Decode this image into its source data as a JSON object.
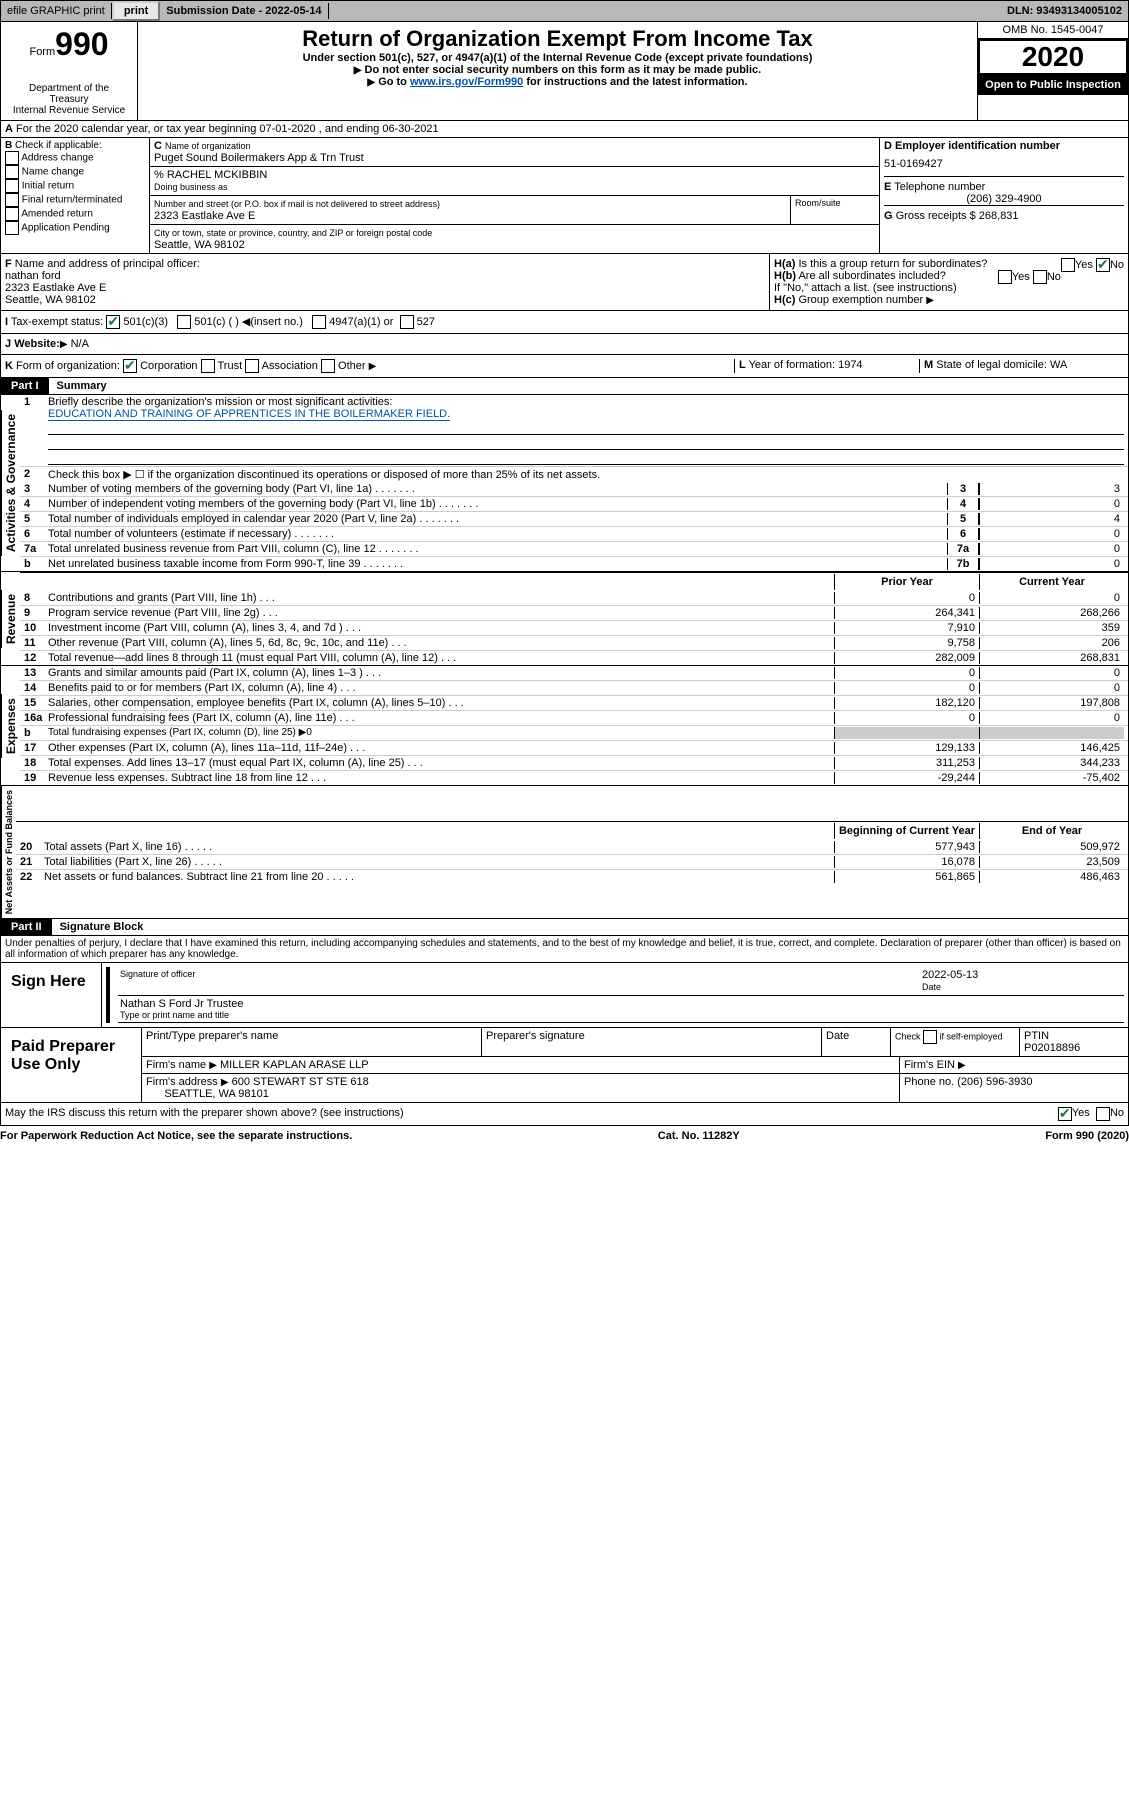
{
  "topbar": {
    "efile": "efile GRAPHIC print",
    "submission": "Submission Date - 2022-05-14",
    "dln": "DLN: 93493134005102"
  },
  "header": {
    "form_label": "Form",
    "form_num": "990",
    "dept": "Department of the Treasury\nInternal Revenue Service",
    "title": "Return of Organization Exempt From Income Tax",
    "sub1": "Under section 501(c), 527, or 4947(a)(1) of the Internal Revenue Code (except private foundations)",
    "sub2": "Do not enter social security numbers on this form as it may be made public.",
    "sub3_pre": "Go to ",
    "sub3_link": "www.irs.gov/Form990",
    "sub3_post": " for instructions and the latest information.",
    "omb": "OMB No. 1545-0047",
    "year": "2020",
    "open": "Open to Public Inspection"
  },
  "section_a": "For the 2020 calendar year, or tax year beginning 07-01-2020    , and ending 06-30-2021",
  "col_b": {
    "hdr": "Check if applicable:",
    "items": [
      "Address change",
      "Name change",
      "Initial return",
      "Final return/terminated",
      "Amended return",
      "Application Pending"
    ]
  },
  "org": {
    "c_label": "Name of organization",
    "name": "Puget Sound Boilermakers App & Trn Trust",
    "care_of": "% RACHEL MCKIBBIN",
    "dba_label": "Doing business as",
    "addr_label": "Number and street (or P.O. box if mail is not delivered to street address)",
    "room_label": "Room/suite",
    "addr": "2323 Eastlake Ave E",
    "city_label": "City or town, state or province, country, and ZIP or foreign postal code",
    "city": "Seattle, WA  98102"
  },
  "col_d": {
    "ein_label": "Employer identification number",
    "ein": "51-0169427",
    "phone_label": "Telephone number",
    "phone": "(206) 329-4900",
    "gross_label": "Gross receipts $",
    "gross": "268,831"
  },
  "f": {
    "label": "Name and address of principal officer:",
    "name": "nathan ford",
    "addr1": "2323 Eastlake Ave E",
    "addr2": "Seattle, WA  98102"
  },
  "h": {
    "a_label": "Is this a group return for subordinates?",
    "a_no": true,
    "b_label": "Are all subordinates included?",
    "b_note": "If \"No,\" attach a list. (see instructions)",
    "c_label": "Group exemption number"
  },
  "i": {
    "label": "Tax-exempt status:",
    "opt1": "501(c)(3)",
    "opt2": "501(c) (  )",
    "opt2b": "(insert no.)",
    "opt3": "4947(a)(1) or",
    "opt4": "527"
  },
  "j": {
    "label": "Website:",
    "val": "N/A"
  },
  "k": {
    "label": "Form of organization:",
    "opts": [
      "Corporation",
      "Trust",
      "Association",
      "Other"
    ]
  },
  "l": {
    "label": "Year of formation:",
    "val": "1974"
  },
  "m": {
    "label": "State of legal domicile:",
    "val": "WA"
  },
  "part1": {
    "hdr": "Part I",
    "title": "Summary"
  },
  "mission": {
    "label": "Briefly describe the organization's mission or most significant activities:",
    "text": "EDUCATION AND TRAINING OF APPRENTICES IN THE BOILERMAKER FIELD."
  },
  "line2": "Check this box ▶ ☐  if the organization discontinued its operations or disposed of more than 25% of its net assets.",
  "gov_lines": [
    {
      "n": "3",
      "t": "Number of voting members of the governing body (Part VI, line 1a)",
      "box": "3",
      "v": "3"
    },
    {
      "n": "4",
      "t": "Number of independent voting members of the governing body (Part VI, line 1b)",
      "box": "4",
      "v": "0"
    },
    {
      "n": "5",
      "t": "Total number of individuals employed in calendar year 2020 (Part V, line 2a)",
      "box": "5",
      "v": "4"
    },
    {
      "n": "6",
      "t": "Total number of volunteers (estimate if necessary)",
      "box": "6",
      "v": "0"
    },
    {
      "n": "7a",
      "t": "Total unrelated business revenue from Part VIII, column (C), line 12",
      "box": "7a",
      "v": "0"
    },
    {
      "n": "b",
      "t": "Net unrelated business taxable income from Form 990-T, line 39",
      "box": "7b",
      "v": "0"
    }
  ],
  "rev_hdr": {
    "prior": "Prior Year",
    "current": "Current Year"
  },
  "rev_lines": [
    {
      "n": "8",
      "t": "Contributions and grants (Part VIII, line 1h)",
      "p": "0",
      "c": "0"
    },
    {
      "n": "9",
      "t": "Program service revenue (Part VIII, line 2g)",
      "p": "264,341",
      "c": "268,266"
    },
    {
      "n": "10",
      "t": "Investment income (Part VIII, column (A), lines 3, 4, and 7d )",
      "p": "7,910",
      "c": "359"
    },
    {
      "n": "11",
      "t": "Other revenue (Part VIII, column (A), lines 5, 6d, 8c, 9c, 10c, and 11e)",
      "p": "9,758",
      "c": "206"
    },
    {
      "n": "12",
      "t": "Total revenue—add lines 8 through 11 (must equal Part VIII, column (A), line 12)",
      "p": "282,009",
      "c": "268,831"
    }
  ],
  "exp_lines": [
    {
      "n": "13",
      "t": "Grants and similar amounts paid (Part IX, column (A), lines 1–3 )",
      "p": "0",
      "c": "0"
    },
    {
      "n": "14",
      "t": "Benefits paid to or for members (Part IX, column (A), line 4)",
      "p": "0",
      "c": "0"
    },
    {
      "n": "15",
      "t": "Salaries, other compensation, employee benefits (Part IX, column (A), lines 5–10)",
      "p": "182,120",
      "c": "197,808"
    },
    {
      "n": "16a",
      "t": "Professional fundraising fees (Part IX, column (A), line 11e)",
      "p": "0",
      "c": "0"
    },
    {
      "n": "b",
      "t": "Total fundraising expenses (Part IX, column (D), line 25) ▶0",
      "shade": true
    },
    {
      "n": "17",
      "t": "Other expenses (Part IX, column (A), lines 11a–11d, 11f–24e)",
      "p": "129,133",
      "c": "146,425"
    },
    {
      "n": "18",
      "t": "Total expenses. Add lines 13–17 (must equal Part IX, column (A), line 25)",
      "p": "311,253",
      "c": "344,233"
    },
    {
      "n": "19",
      "t": "Revenue less expenses. Subtract line 18 from line 12",
      "p": "-29,244",
      "c": "-75,402"
    }
  ],
  "net_hdr": {
    "begin": "Beginning of Current Year",
    "end": "End of Year"
  },
  "net_lines": [
    {
      "n": "20",
      "t": "Total assets (Part X, line 16)",
      "p": "577,943",
      "c": "509,972"
    },
    {
      "n": "21",
      "t": "Total liabilities (Part X, line 26)",
      "p": "16,078",
      "c": "23,509"
    },
    {
      "n": "22",
      "t": "Net assets or fund balances. Subtract line 21 from line 20",
      "p": "561,865",
      "c": "486,463"
    }
  ],
  "part2": {
    "hdr": "Part II",
    "title": "Signature Block"
  },
  "sig_text": "Under penalties of perjury, I declare that I have examined this return, including accompanying schedules and statements, and to the best of my knowledge and belief, it is true, correct, and complete. Declaration of preparer (other than officer) is based on all information of which preparer has any knowledge.",
  "sign": {
    "here": "Sign Here",
    "sig_of": "Signature of officer",
    "date_label": "Date",
    "date": "2022-05-13",
    "name": "Nathan S Ford Jr Trustee",
    "name_label": "Type or print name and title"
  },
  "paid": {
    "label": "Paid Preparer Use Only",
    "h1": "Print/Type preparer's name",
    "h2": "Preparer's signature",
    "h3": "Date",
    "h4_pre": "Check",
    "h4_post": "if self-employed",
    "h5": "PTIN",
    "ptin": "P02018896",
    "firm_label": "Firm's name",
    "firm": "MILLER KAPLAN ARASE LLP",
    "ein_label": "Firm's EIN",
    "addr_label": "Firm's address",
    "addr1": "600 STEWART ST STE 618",
    "addr2": "SEATTLE, WA  98101",
    "phone_label": "Phone no.",
    "phone": "(206) 596-3930"
  },
  "discuss": {
    "q": "May the IRS discuss this return with the preparer shown above? (see instructions)",
    "yes": "Yes",
    "no": "No"
  },
  "footer": {
    "l": "For Paperwork Reduction Act Notice, see the separate instructions.",
    "c": "Cat. No. 11282Y",
    "r": "Form 990 (2020)"
  },
  "vtabs": {
    "gov": "Activities & Governance",
    "rev": "Revenue",
    "exp": "Expenses",
    "net": "Net Assets or Fund Balances"
  },
  "b_prefix": "B",
  "c_prefix": "C",
  "d_prefix": "D",
  "e_prefix": "E",
  "f_prefix": "F",
  "g_prefix": "G",
  "ha_prefix": "H(a)",
  "hb_prefix": "H(b)",
  "hc_prefix": "H(c)",
  "i_prefix": "I",
  "j_prefix": "J",
  "k_prefix": "K",
  "l_prefix": "L",
  "m_prefix": "M"
}
